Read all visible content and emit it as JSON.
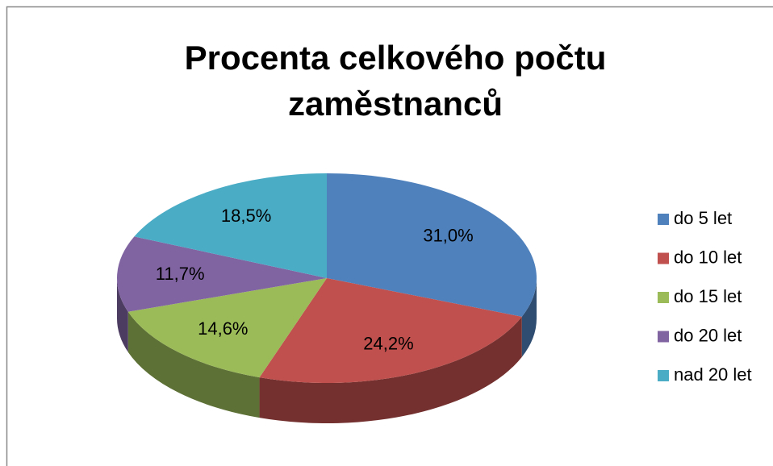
{
  "chart_data": {
    "type": "pie",
    "title": "Procenta celkového počtu zaměstnanců",
    "categories": [
      "do 5 let",
      "do 10 let",
      "do 15 let",
      "do 20 let",
      "nad 20 let"
    ],
    "values": [
      31.0,
      24.2,
      14.6,
      11.7,
      18.5
    ],
    "value_labels": [
      "31,0%",
      "24,2%",
      "14,6%",
      "11,7%",
      "18,5%"
    ],
    "colors": [
      "#4f81bd",
      "#c0504d",
      "#9bbb59",
      "#8064a2",
      "#4bacc6"
    ],
    "legend": "right",
    "3d": true
  }
}
